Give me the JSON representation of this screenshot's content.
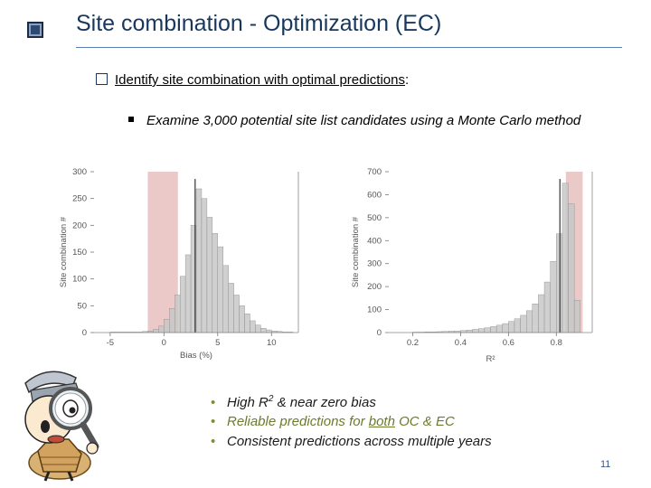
{
  "slide": {
    "title": "Site combination - Optimization (EC)",
    "point1": "Identify site combination with optimal predictions",
    "point1_suffix": ":",
    "point2": "Examine 3,000 potential site list candidates using a Monte Carlo method",
    "bullets": {
      "b1_pre": "High R",
      "b1_sup": "2",
      "b1_post": " & near zero bias",
      "b2_pre": "Reliable predictions for ",
      "b2_u": "both",
      "b2_post": " OC & EC",
      "b3": "Consistent predictions across multiple years"
    },
    "page_number": "11"
  },
  "colors": {
    "title": "#17375e",
    "bar": "#c8c8c8",
    "highlight": "#e8c0c0",
    "median_line": "#333333"
  },
  "chart_data": [
    {
      "type": "bar",
      "xlabel": "Bias (%)",
      "ylabel": "Site combination #",
      "xlim": [
        -6.5,
        12.5
      ],
      "ylim": [
        0,
        300
      ],
      "xticks": [
        -5,
        0,
        5,
        10
      ],
      "yticks": [
        0,
        50,
        100,
        150,
        200,
        250,
        300
      ],
      "bin_width": 0.5,
      "bin_starts": [
        -5,
        -4.5,
        -4,
        -3.5,
        -3,
        -2.5,
        -2,
        -1.5,
        -1,
        -0.5,
        0,
        0.5,
        1,
        1.5,
        2,
        2.5,
        3,
        3.5,
        4,
        4.5,
        5,
        5.5,
        6,
        6.5,
        7,
        7.5,
        8,
        8.5,
        9,
        9.5,
        10,
        10.5,
        11,
        11.5
      ],
      "values": [
        1,
        1,
        1,
        1,
        1,
        1,
        2,
        3,
        6,
        12,
        25,
        45,
        70,
        105,
        145,
        200,
        268,
        250,
        215,
        185,
        160,
        125,
        92,
        70,
        50,
        35,
        22,
        14,
        8,
        5,
        3,
        2,
        1,
        1
      ],
      "highlight_range": [
        -1.5,
        1.3
      ],
      "median_line": 2.9
    },
    {
      "type": "bar",
      "xlabel": "R²",
      "ylabel": "Site combination #",
      "xlim": [
        0.1,
        0.95
      ],
      "ylim": [
        0,
        700
      ],
      "xticks": [
        0.2,
        0.4,
        0.6,
        0.8
      ],
      "yticks": [
        0,
        100,
        200,
        300,
        400,
        500,
        600,
        700
      ],
      "bin_width": 0.025,
      "bin_starts": [
        0.2,
        0.225,
        0.25,
        0.275,
        0.3,
        0.325,
        0.35,
        0.375,
        0.4,
        0.425,
        0.45,
        0.475,
        0.5,
        0.525,
        0.55,
        0.575,
        0.6,
        0.625,
        0.65,
        0.675,
        0.7,
        0.725,
        0.75,
        0.775,
        0.8,
        0.825,
        0.85,
        0.875
      ],
      "values": [
        2,
        2,
        3,
        3,
        4,
        5,
        6,
        7,
        9,
        11,
        14,
        17,
        21,
        26,
        32,
        39,
        48,
        60,
        75,
        95,
        125,
        165,
        220,
        310,
        430,
        650,
        560,
        140
      ],
      "highlight_range": [
        0.84,
        0.91
      ],
      "median_line": 0.815
    }
  ]
}
